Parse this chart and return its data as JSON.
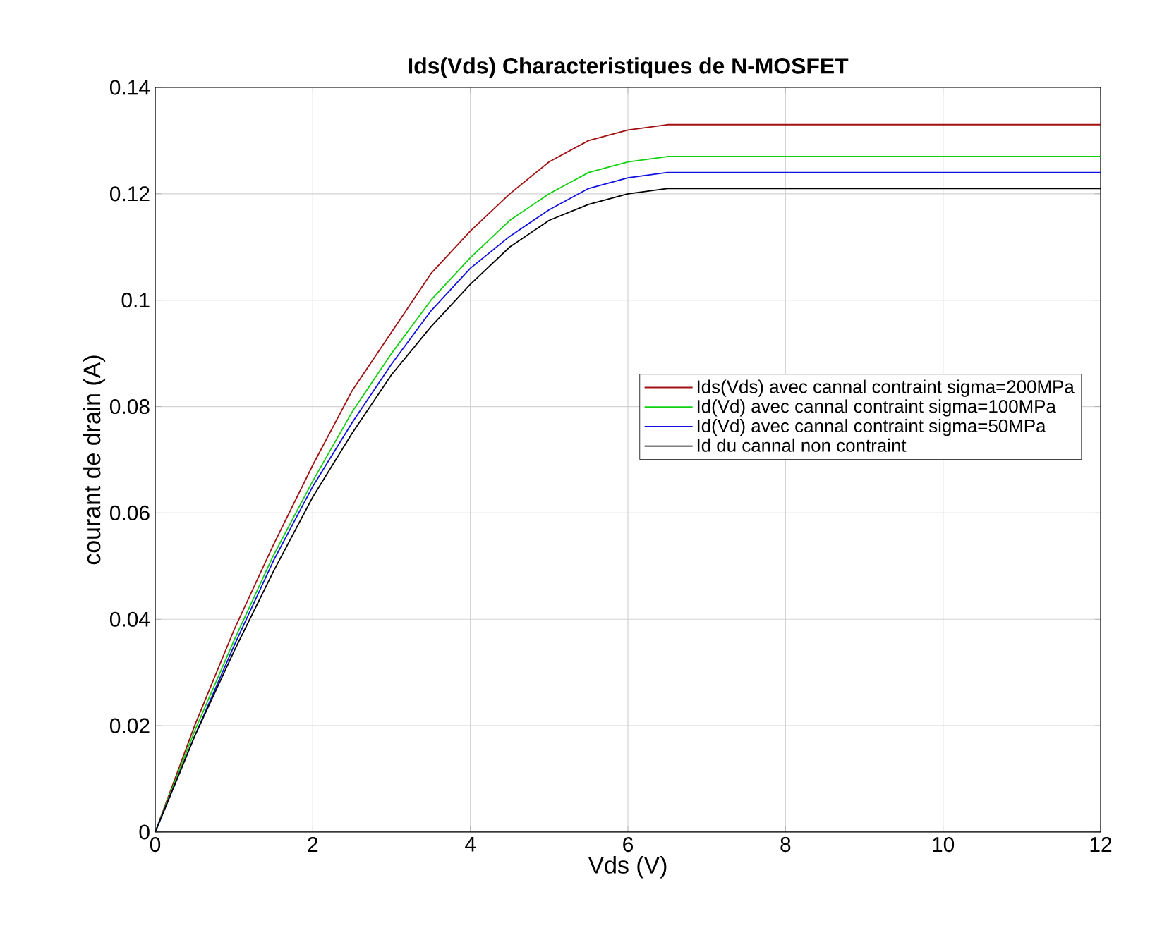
{
  "chart_data": {
    "type": "line",
    "title": "Ids(Vds) Characteristiques de N-MOSFET",
    "xlabel": "Vds (V)",
    "ylabel": "courant de drain (A)",
    "x": [
      0,
      0.5,
      1,
      1.5,
      2,
      2.5,
      3,
      3.5,
      4,
      4.5,
      5,
      5.5,
      6,
      6.5,
      12
    ],
    "series": [
      {
        "name": "Ids(Vds) avec cannal contraint sigma=200MPa",
        "color": "#a01010",
        "values": [
          0,
          0.02,
          0.038,
          0.054,
          0.069,
          0.083,
          0.094,
          0.105,
          0.113,
          0.12,
          0.126,
          0.13,
          0.132,
          0.133,
          0.133
        ]
      },
      {
        "name": "Id(Vd) avec cannal contraint sigma=100MPa",
        "color": "#10d010",
        "values": [
          0,
          0.019,
          0.036,
          0.052,
          0.066,
          0.079,
          0.09,
          0.1,
          0.108,
          0.115,
          0.12,
          0.124,
          0.126,
          0.127,
          0.127
        ]
      },
      {
        "name": "Id(Vd) avec cannal contraint sigma=50MPa",
        "color": "#1010e0",
        "values": [
          0,
          0.018,
          0.035,
          0.051,
          0.065,
          0.077,
          0.088,
          0.098,
          0.106,
          0.112,
          0.117,
          0.121,
          0.123,
          0.124,
          0.124
        ]
      },
      {
        "name": "Id du cannal non contraint",
        "color": "#000000",
        "values": [
          0,
          0.018,
          0.034,
          0.049,
          0.063,
          0.075,
          0.086,
          0.095,
          0.103,
          0.11,
          0.115,
          0.118,
          0.12,
          0.121,
          0.121
        ]
      }
    ],
    "xlim": [
      0,
      12
    ],
    "ylim": [
      0,
      0.14
    ],
    "xticks": [
      0,
      2,
      4,
      6,
      8,
      10,
      12
    ],
    "yticks": [
      0,
      0.02,
      0.04,
      0.06,
      0.08,
      0.1,
      0.12,
      0.14
    ],
    "grid": true,
    "legend": "right",
    "marker": "none",
    "line_style": "solid"
  }
}
